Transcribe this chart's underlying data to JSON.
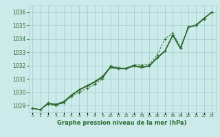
{
  "x": [
    0,
    1,
    2,
    3,
    4,
    5,
    6,
    7,
    8,
    9,
    10,
    11,
    12,
    13,
    14,
    15,
    16,
    17,
    18,
    19,
    20,
    21,
    22,
    23
  ],
  "line1": [
    1028.8,
    1028.7,
    1029.2,
    1029.1,
    1029.3,
    1029.8,
    1030.2,
    1030.5,
    1030.8,
    1031.2,
    1031.9,
    1031.8,
    1031.8,
    1032.0,
    1031.9,
    1032.0,
    1032.6,
    1033.1,
    1034.3,
    1033.3,
    1034.9,
    1035.0,
    1035.5,
    1036.0
  ],
  "line2": [
    1028.8,
    1028.7,
    1029.15,
    1029.05,
    1029.25,
    1029.75,
    1030.15,
    1030.45,
    1030.75,
    1031.1,
    1031.85,
    1031.75,
    1031.75,
    1031.95,
    1031.85,
    1031.95,
    1032.55,
    1033.05,
    1034.25,
    1033.25,
    1034.85,
    1035.05,
    1035.55,
    1036.0
  ],
  "line3": [
    1028.8,
    1028.7,
    1029.2,
    1029.1,
    1029.3,
    1029.8,
    1030.2,
    1030.5,
    1030.8,
    1031.2,
    1031.9,
    1031.8,
    1031.8,
    1032.0,
    1031.9,
    1032.0,
    1032.6,
    1033.1,
    1034.3,
    1033.3,
    1034.9,
    1035.0,
    1035.5,
    1036.0
  ],
  "line4_dotted": [
    1028.8,
    1028.7,
    1029.1,
    1029.0,
    1029.2,
    1029.7,
    1030.0,
    1030.3,
    1030.6,
    1031.0,
    1032.0,
    1031.85,
    1031.8,
    1032.05,
    1032.05,
    1032.1,
    1032.8,
    1034.0,
    1034.45,
    1033.4,
    1034.9,
    1035.05,
    1035.55,
    1036.0
  ],
  "bg_color": "#cceaea",
  "grid_color": "#99cccc",
  "line_color": "#2d6a2d",
  "title": "Graphe pression niveau de la mer (hPa)",
  "ylim_min": 1028.5,
  "ylim_max": 1036.5,
  "yticks": [
    1029,
    1030,
    1031,
    1032,
    1033,
    1034,
    1035,
    1036
  ],
  "figwidth": 3.2,
  "figheight": 2.0,
  "dpi": 100
}
